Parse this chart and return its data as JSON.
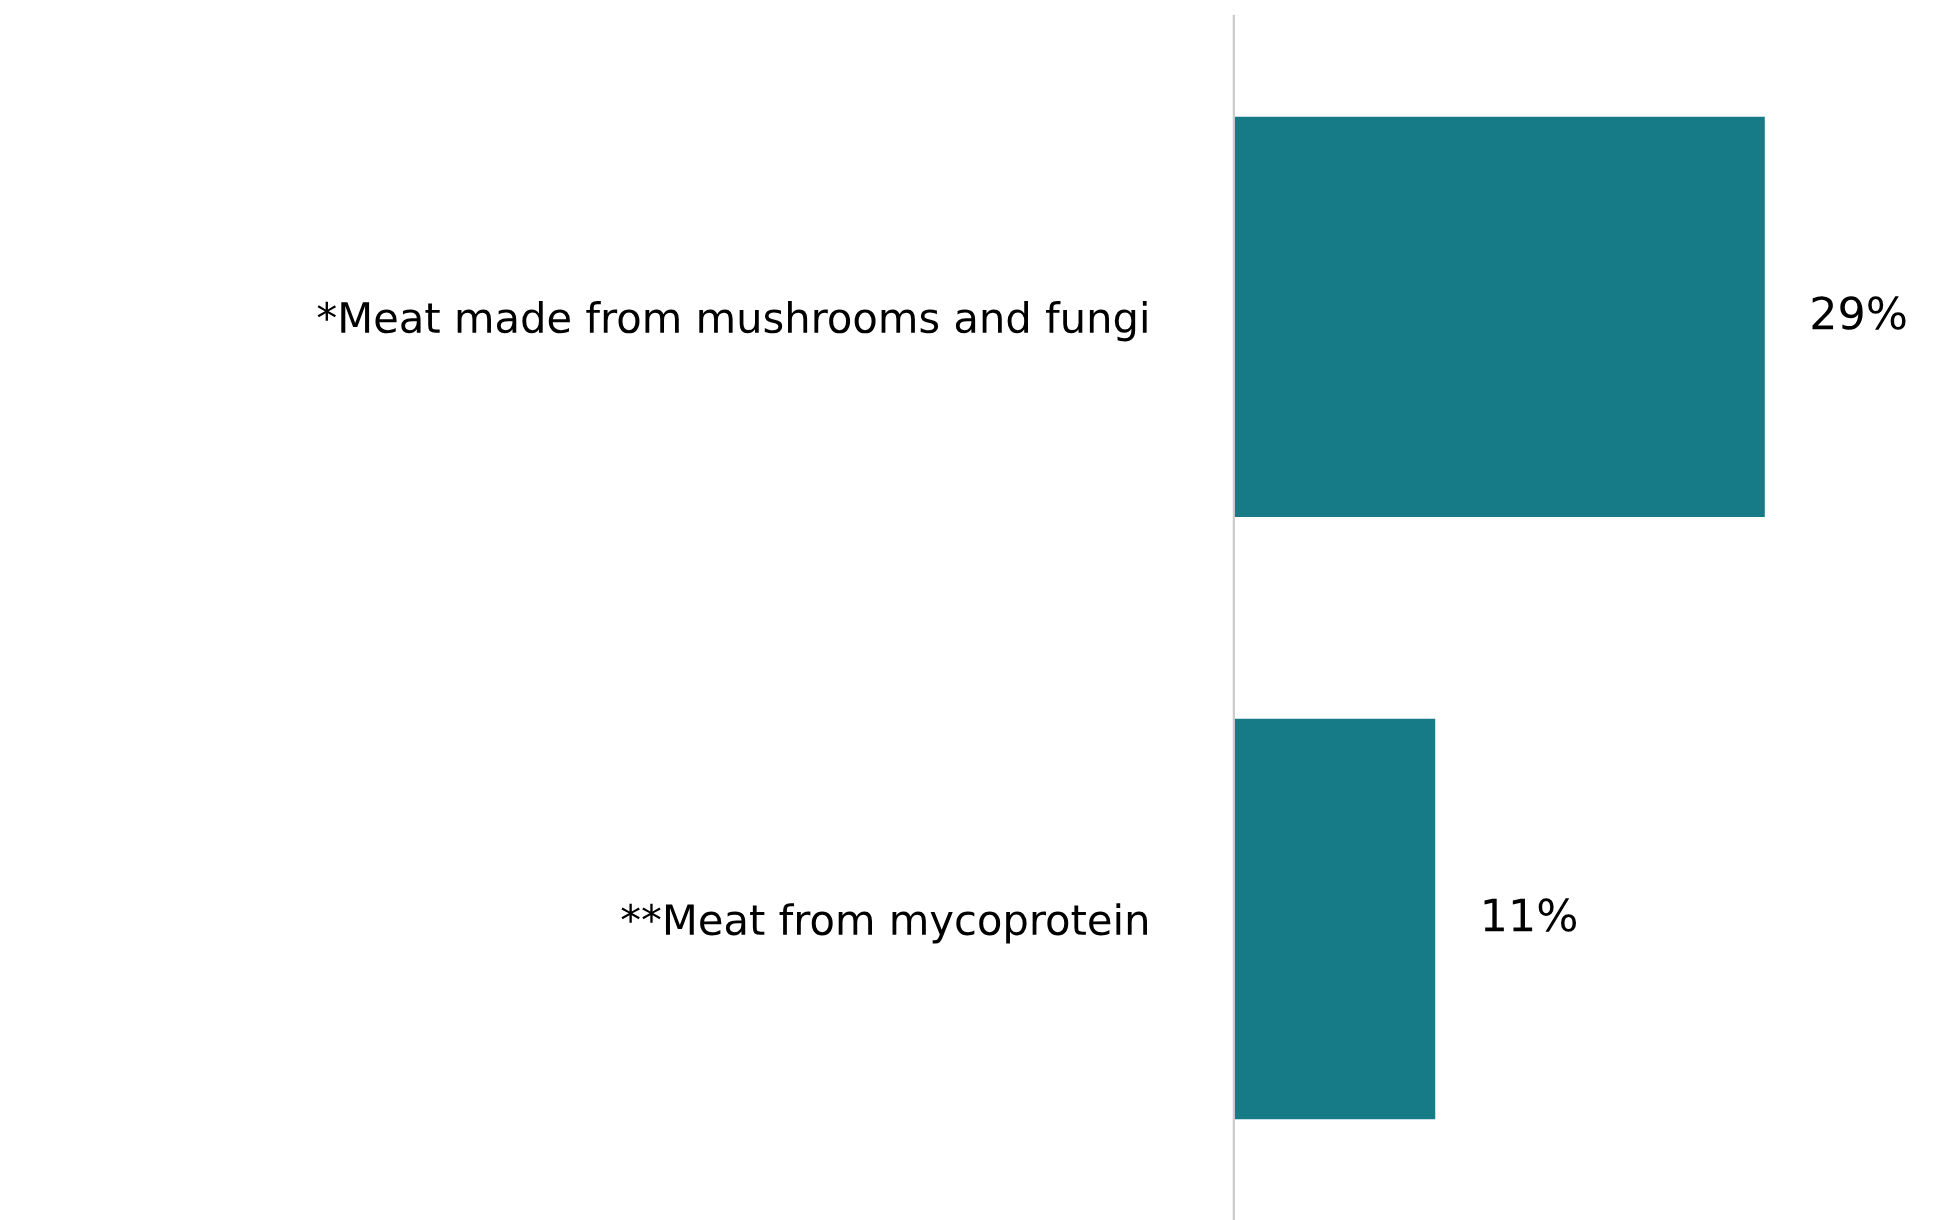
{
  "chart_data": {
    "type": "bar",
    "orientation": "horizontal",
    "categories": [
      "*Meat made from mushrooms and fungi",
      "**Meat from mycoprotein"
    ],
    "values": [
      29,
      11
    ],
    "value_labels": [
      "29%",
      "11%"
    ],
    "color": "#167b86",
    "grid": false,
    "legend": false,
    "tick_labels": "y"
  }
}
